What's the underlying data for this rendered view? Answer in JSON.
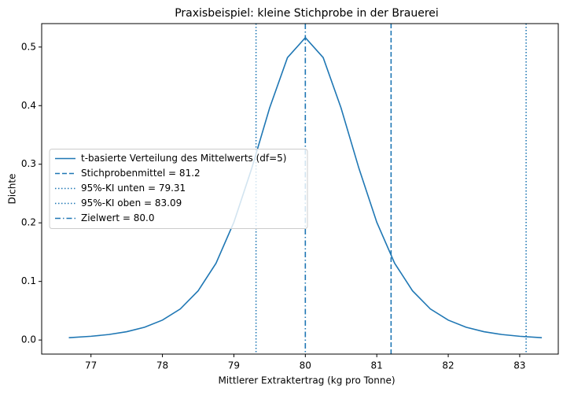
{
  "chart_data": {
    "type": "line",
    "title": "Praxisbeispiel: kleine Stichprobe in der Brauerei",
    "xlabel": "Mittlerer Extraktertrag (kg pro Tonne)",
    "ylabel": "Dichte",
    "x": [
      76.69,
      77.0,
      77.25,
      77.5,
      77.75,
      78.0,
      78.25,
      78.5,
      78.75,
      79.0,
      79.25,
      79.5,
      79.75,
      80.0,
      80.25,
      80.5,
      80.75,
      81.0,
      81.25,
      81.5,
      81.75,
      82.0,
      82.25,
      82.5,
      82.75,
      83.0,
      83.31
    ],
    "series": [
      {
        "name": "t-basierte Verteilung des Mittelwerts (df=5)",
        "color": "#1f77b4",
        "values": [
          0.004,
          0.0064,
          0.0094,
          0.0142,
          0.0218,
          0.034,
          0.053,
          0.084,
          0.131,
          0.201,
          0.293,
          0.396,
          0.482,
          0.516,
          0.482,
          0.396,
          0.293,
          0.201,
          0.131,
          0.084,
          0.053,
          0.034,
          0.0218,
          0.0142,
          0.0094,
          0.0064,
          0.004
        ]
      }
    ],
    "vlines": [
      {
        "name": "Stichprobenmittel = 81.2",
        "x": 81.2,
        "style": "dashed",
        "color": "#1f77b4"
      },
      {
        "name": "95%-KI unten = 79.31",
        "x": 79.31,
        "style": "dotted",
        "color": "#1f77b4"
      },
      {
        "name": "95%-KI oben = 83.09",
        "x": 83.09,
        "style": "dotted",
        "color": "#1f77b4"
      },
      {
        "name": "Zielwert = 80.0",
        "x": 80.0,
        "style": "dashdot",
        "color": "#1f77b4"
      }
    ],
    "xlim": [
      76.31,
      83.54
    ],
    "ylim": [
      -0.024,
      0.54
    ],
    "xticks": [
      77,
      78,
      79,
      80,
      81,
      82,
      83
    ],
    "yticks": [
      {
        "value": 0,
        "label": "0.0"
      },
      0.1,
      0.2,
      0.3,
      0.4,
      0.5
    ],
    "legend": "center left"
  }
}
